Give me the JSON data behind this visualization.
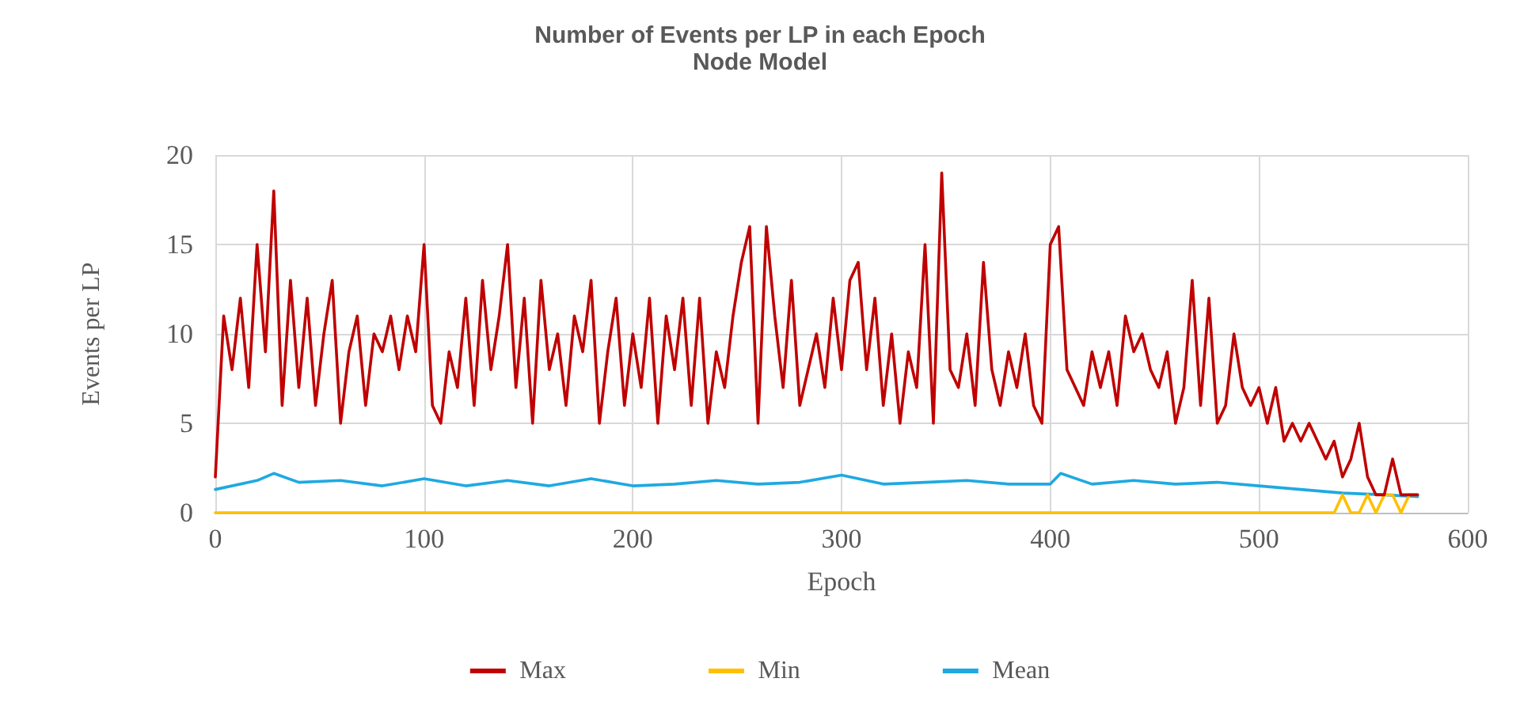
{
  "chart_data": {
    "type": "line",
    "title": "Number of Events per LP in each Epoch",
    "subtitle": "Node Model",
    "xlabel": "Epoch",
    "ylabel": "Events per LP",
    "xlim": [
      0,
      600
    ],
    "xticks": [
      0,
      100,
      200,
      300,
      400,
      500,
      600
    ],
    "ylim": [
      0,
      20
    ],
    "yticks": [
      0,
      5,
      10,
      15,
      20
    ],
    "grid": true,
    "legend": "bottom",
    "marker": "none",
    "line_style": "solid",
    "series": [
      {
        "name": "Max",
        "color": "#c00000",
        "x": [
          0,
          4,
          8,
          12,
          16,
          20,
          24,
          28,
          32,
          36,
          40,
          44,
          48,
          52,
          56,
          60,
          64,
          68,
          72,
          76,
          80,
          84,
          88,
          92,
          96,
          100,
          104,
          108,
          112,
          116,
          120,
          124,
          128,
          132,
          136,
          140,
          144,
          148,
          152,
          156,
          160,
          164,
          168,
          172,
          176,
          180,
          184,
          188,
          192,
          196,
          200,
          204,
          208,
          212,
          216,
          220,
          224,
          228,
          232,
          236,
          240,
          244,
          248,
          252,
          256,
          260,
          264,
          268,
          272,
          276,
          280,
          284,
          288,
          292,
          296,
          300,
          304,
          308,
          312,
          316,
          320,
          324,
          328,
          332,
          336,
          340,
          344,
          348,
          352,
          356,
          360,
          364,
          368,
          372,
          376,
          380,
          384,
          388,
          392,
          396,
          400,
          404,
          408,
          412,
          416,
          420,
          424,
          428,
          432,
          436,
          440,
          444,
          448,
          452,
          456,
          460,
          464,
          468,
          472,
          476,
          480,
          484,
          488,
          492,
          496,
          500,
          504,
          508,
          512,
          516,
          520,
          524,
          528,
          532,
          536,
          540,
          544,
          548,
          552,
          556,
          560,
          564,
          568,
          572,
          576
        ],
        "values": [
          2,
          11,
          8,
          12,
          7,
          15,
          9,
          18,
          6,
          13,
          7,
          12,
          6,
          10,
          13,
          5,
          9,
          11,
          6,
          10,
          9,
          11,
          8,
          11,
          9,
          15,
          6,
          5,
          9,
          7,
          12,
          6,
          13,
          8,
          11,
          15,
          7,
          12,
          5,
          13,
          8,
          10,
          6,
          11,
          9,
          13,
          5,
          9,
          12,
          6,
          10,
          7,
          12,
          5,
          11,
          8,
          12,
          6,
          12,
          5,
          9,
          7,
          11,
          14,
          16,
          5,
          16,
          11,
          7,
          13,
          6,
          8,
          10,
          7,
          12,
          8,
          13,
          14,
          8,
          12,
          6,
          10,
          5,
          9,
          7,
          15,
          5,
          19,
          8,
          7,
          10,
          6,
          14,
          8,
          6,
          9,
          7,
          10,
          6,
          5,
          15,
          16,
          8,
          7,
          6,
          9,
          7,
          9,
          6,
          11,
          9,
          10,
          8,
          7,
          9,
          5,
          7,
          13,
          6,
          12,
          5,
          6,
          10,
          7,
          6,
          7,
          5,
          7,
          4,
          5,
          4,
          5,
          4,
          3,
          4,
          2,
          3,
          5,
          2,
          1,
          1,
          3,
          1,
          1,
          1
        ]
      },
      {
        "name": "Min",
        "color": "#ffc000",
        "x": [
          0,
          536,
          540,
          544,
          548,
          552,
          556,
          560,
          564,
          568,
          572,
          576
        ],
        "values": [
          0,
          0,
          1,
          0,
          0,
          1,
          0,
          1,
          1,
          0,
          1,
          1
        ]
      },
      {
        "name": "Mean",
        "color": "#1fa9e1",
        "x": [
          0,
          20,
          28,
          40,
          60,
          80,
          100,
          120,
          140,
          160,
          180,
          200,
          220,
          240,
          260,
          280,
          300,
          320,
          340,
          360,
          380,
          400,
          405,
          420,
          440,
          460,
          480,
          500,
          520,
          540,
          560,
          576
        ],
        "values": [
          1.3,
          1.8,
          2.2,
          1.7,
          1.8,
          1.5,
          1.9,
          1.5,
          1.8,
          1.5,
          1.9,
          1.5,
          1.6,
          1.8,
          1.6,
          1.7,
          2.1,
          1.6,
          1.7,
          1.8,
          1.6,
          1.6,
          2.2,
          1.6,
          1.8,
          1.6,
          1.7,
          1.5,
          1.3,
          1.1,
          1.0,
          0.9
        ]
      }
    ]
  }
}
